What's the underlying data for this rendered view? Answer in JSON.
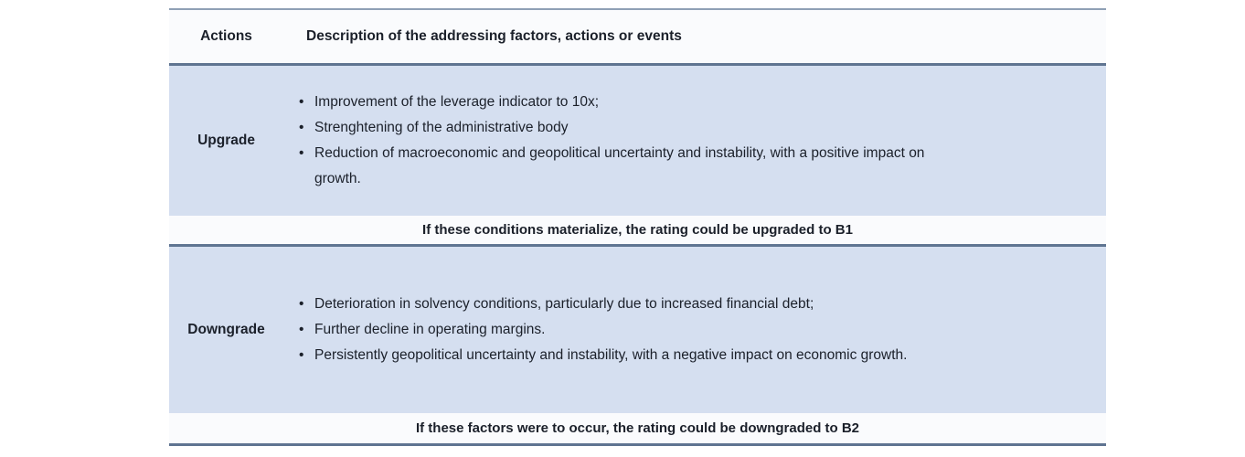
{
  "table": {
    "header": {
      "actions": "Actions",
      "description": "Description of the addressing factors, actions or events"
    },
    "rows": [
      {
        "action": "Upgrade",
        "bullets": [
          "Improvement of the leverage indicator to 10x;",
          "Strenghtening of the administrative body",
          "Reduction of macroeconomic and geopolitical uncertainty and instability, with a positive impact on growth."
        ],
        "note": "If these conditions materialize, the rating could be upgraded to B1"
      },
      {
        "action": "Downgrade",
        "bullets": [
          "Deterioration in solvency conditions, particularly due to increased financial debt;",
          "Further decline in operating margins.",
          "Persistently geopolitical uncertainty and instability, with a negative impact on economic growth."
        ],
        "note": "If these factors were to occur, the rating could be downgraded to B2"
      }
    ],
    "colors": {
      "row_background": "#d5dff0",
      "note_background": "#fafbfd",
      "rule_dark": "#5f7491",
      "rule_light": "#8fa0b5",
      "text": "#1b202a"
    }
  }
}
